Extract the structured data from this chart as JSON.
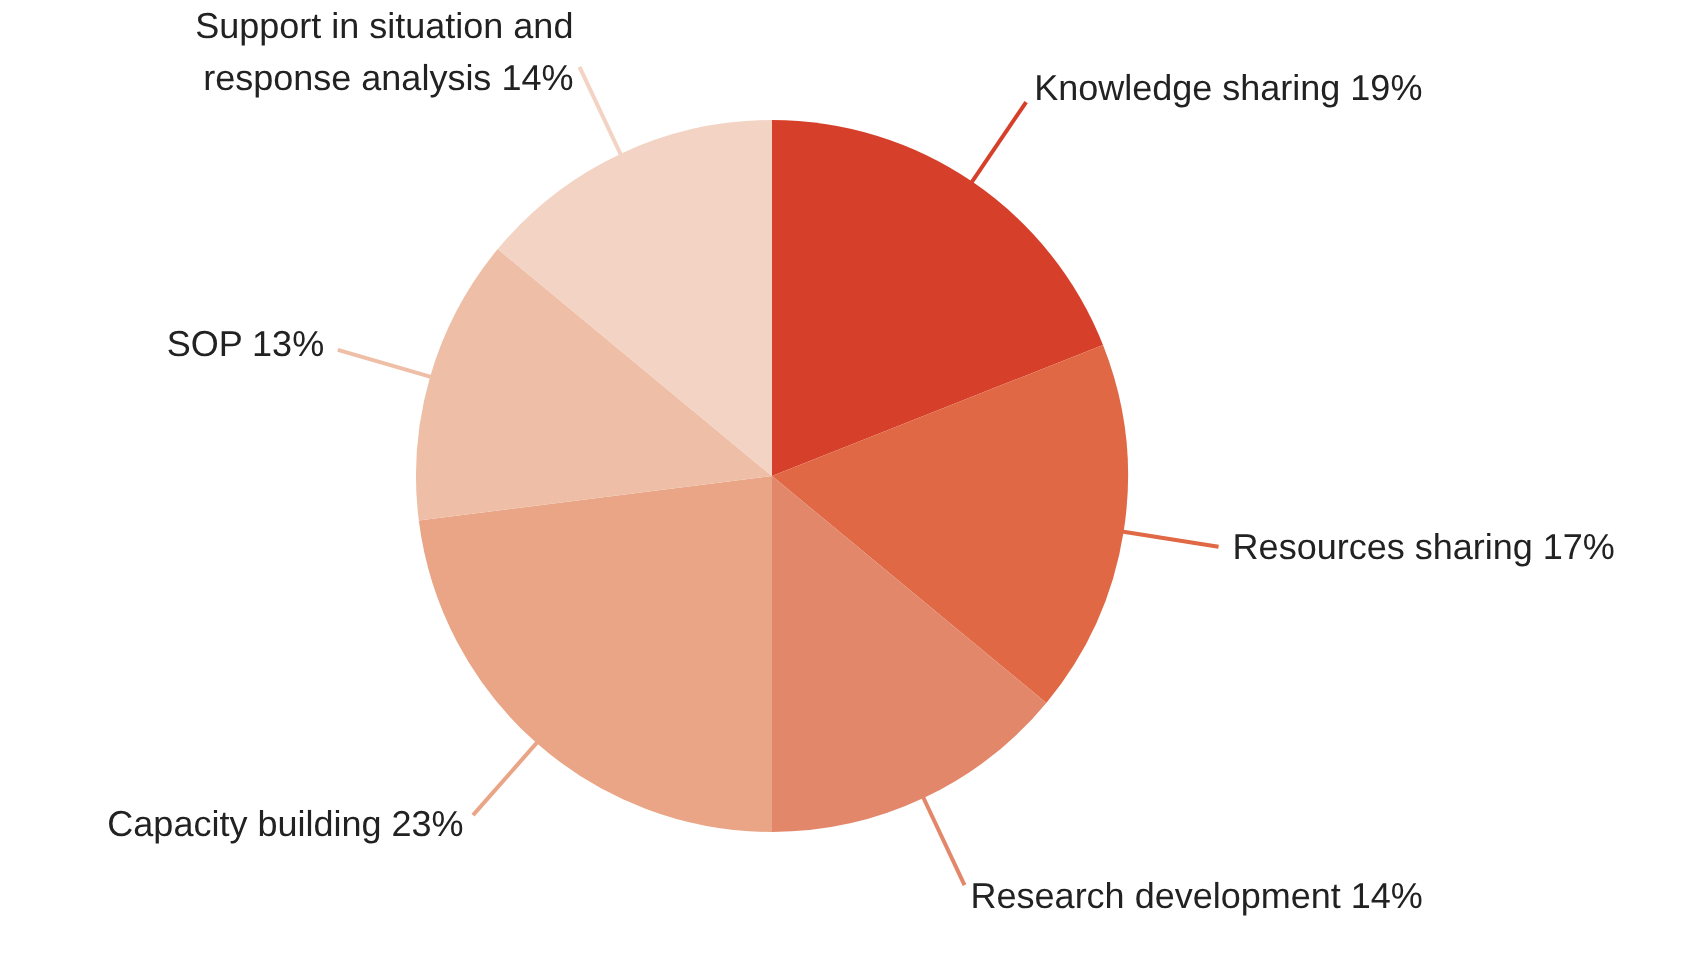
{
  "chart_data": {
    "type": "pie",
    "categories": [
      "Knowledge sharing",
      "Resources sharing",
      "Research development",
      "Capacity building",
      "SOP",
      "Support in situation and response analysis"
    ],
    "values": [
      19,
      17,
      14,
      23,
      13,
      14
    ],
    "value_labels": [
      "19%",
      "17%",
      "14%",
      "23%",
      "13%",
      "14%"
    ],
    "colors": [
      "#d6402a",
      "#e06845",
      "#e3876a",
      "#e9a586",
      "#eebea6",
      "#f3d3c3"
    ],
    "legend": false
  }
}
